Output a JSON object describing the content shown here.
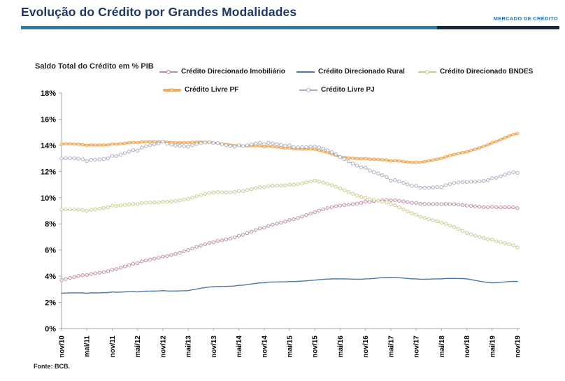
{
  "header": {
    "title": "Evolução do Crédito por Grandes Modalidades",
    "corner_label": "MERCADO DE CRÉDITO",
    "title_color": "#1f3864",
    "corner_color": "#2e74b5",
    "rule_color_primary": "#2e7ca6",
    "rule_color_secondary": "#162844"
  },
  "chart_data": {
    "type": "line",
    "title": "Saldo Total do Crédito em % PIB",
    "xlabel": "",
    "ylabel": "",
    "ylim": [
      0,
      18
    ],
    "y_tick_step": 2,
    "y_tick_labels": [
      "0%",
      "2%",
      "4%",
      "6%",
      "8%",
      "10%",
      "12%",
      "14%",
      "16%",
      "18%"
    ],
    "grid": false,
    "legend_position": "top",
    "x_tick_labels": [
      "nov/10",
      "mai/11",
      "nov/11",
      "mai/12",
      "nov/12",
      "mai/13",
      "nov/13",
      "mai/14",
      "nov/14",
      "mai/15",
      "nov/15",
      "mai/16",
      "nov/16",
      "mai/17",
      "nov/17",
      "mai/18",
      "nov/18",
      "mai/19",
      "nov/19"
    ],
    "series": [
      {
        "id": "direcionado-imobiliario",
        "name": "Crédito Direcionado Imobiliário",
        "color": "#bd8ba6",
        "marker": "circle",
        "marker_fill": "#faf4f7",
        "line_width": 1,
        "jitter": 0.05,
        "values": [
          3.7,
          4.1,
          4.5,
          5.0,
          5.5,
          6.0,
          6.6,
          7.1,
          7.7,
          8.3,
          8.9,
          9.4,
          9.7,
          9.8,
          9.6,
          9.5,
          9.4,
          9.3,
          9.2
        ]
      },
      {
        "id": "direcionado-rural",
        "name": "Crédito Direcionado Rural",
        "color": "#4a78ab",
        "marker": "none",
        "marker_fill": "#ffffff",
        "line_width": 1.4,
        "jitter": 0.03,
        "values": [
          2.7,
          2.7,
          2.8,
          2.8,
          2.9,
          2.9,
          3.2,
          3.3,
          3.5,
          3.6,
          3.7,
          3.8,
          3.8,
          3.9,
          3.8,
          3.8,
          3.8,
          3.5,
          3.6
        ]
      },
      {
        "id": "direcionado-bndes",
        "name": "Crédito Direcionado BNDES",
        "color": "#c8c893",
        "marker": "circle",
        "marker_fill": "#fcfcf0",
        "line_width": 1,
        "jitter": 0.06,
        "values": [
          9.1,
          9.0,
          9.4,
          9.5,
          9.7,
          9.9,
          10.4,
          10.5,
          10.8,
          11.0,
          11.3,
          10.7,
          10.0,
          9.5,
          8.7,
          8.1,
          7.3,
          6.8,
          6.2
        ]
      },
      {
        "id": "livre-pf",
        "name": "Crédito Livre PF",
        "color": "#edaa5f",
        "marker": "circle",
        "marker_fill": "#f8d9b0",
        "line_width": 3.2,
        "jitter": 0.05,
        "values": [
          14.1,
          14.0,
          14.1,
          14.2,
          14.3,
          14.2,
          14.2,
          14.0,
          13.9,
          13.8,
          13.7,
          13.1,
          13.0,
          12.8,
          12.7,
          13.0,
          13.5,
          14.2,
          14.9
        ]
      },
      {
        "id": "livre-pj",
        "name": "Crédito Livre PJ",
        "color": "#a8a8bc",
        "marker": "circle",
        "marker_fill": "#ffffff",
        "line_width": 1,
        "jitter": 0.12,
        "values": [
          13.0,
          12.8,
          13.2,
          13.6,
          14.3,
          13.9,
          14.2,
          14.0,
          14.1,
          14.0,
          13.9,
          13.1,
          12.3,
          11.3,
          10.9,
          10.8,
          11.2,
          11.5,
          11.9
        ]
      }
    ]
  },
  "footer": {
    "source": "Fonte: BCB."
  }
}
